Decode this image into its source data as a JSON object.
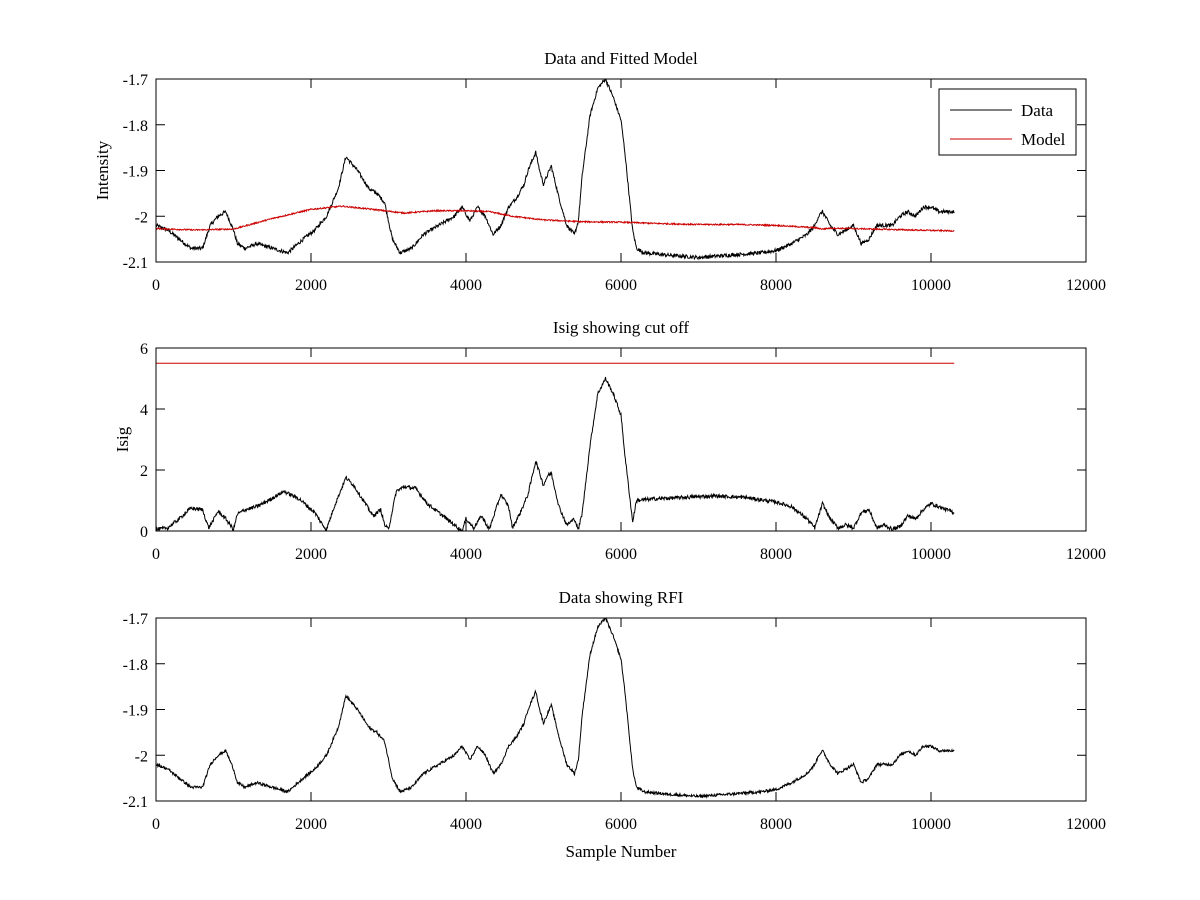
{
  "chart_data": [
    {
      "type": "line",
      "title": "Data and Fitted Model",
      "xlabel": "",
      "ylabel": "Intensity",
      "xlim": [
        0,
        12000
      ],
      "ylim": [
        -2.1,
        -1.7
      ],
      "xticks": [
        0,
        2000,
        4000,
        6000,
        8000,
        10000,
        12000
      ],
      "yticks": [
        -2.1,
        -2,
        -1.9,
        -1.8,
        -1.7
      ],
      "xtick_labels": [
        "0",
        "2000",
        "4000",
        "6000",
        "8000",
        "10000",
        "12000"
      ],
      "ytick_labels": [
        "-2.1",
        "-2",
        "-1.9",
        "-1.8",
        "-1.7"
      ],
      "grid": false,
      "legend": {
        "position": "top-right",
        "entries": [
          "Data",
          "Model"
        ]
      },
      "series": [
        {
          "name": "Data",
          "color": "#000000",
          "noise": 0.004,
          "x": [
            0,
            150,
            300,
            450,
            600,
            700,
            800,
            900,
            1000,
            1050,
            1150,
            1300,
            1500,
            1700,
            1900,
            2050,
            2200,
            2350,
            2450,
            2600,
            2750,
            2850,
            2950,
            3050,
            3150,
            3300,
            3450,
            3650,
            3850,
            3950,
            4050,
            4150,
            4250,
            4350,
            4450,
            4550,
            4650,
            4750,
            4800,
            4900,
            4950,
            5000,
            5050,
            5100,
            5200,
            5300,
            5400,
            5450,
            5500,
            5600,
            5700,
            5800,
            5900,
            6000,
            6050,
            6150,
            6200,
            6300,
            6600,
            7000,
            7400,
            7800,
            8000,
            8200,
            8400,
            8500,
            8550,
            8600,
            8700,
            8800,
            8900,
            9000,
            9100,
            9200,
            9300,
            9400,
            9500,
            9600,
            9700,
            9800,
            9900,
            10000,
            10100,
            10200,
            10300
          ],
          "y": [
            -2.02,
            -2.03,
            -2.05,
            -2.07,
            -2.07,
            -2.02,
            -2.0,
            -1.99,
            -2.03,
            -2.06,
            -2.07,
            -2.06,
            -2.07,
            -2.08,
            -2.05,
            -2.03,
            -2.0,
            -1.94,
            -1.87,
            -1.9,
            -1.94,
            -1.95,
            -1.97,
            -2.05,
            -2.08,
            -2.07,
            -2.04,
            -2.02,
            -2.0,
            -1.98,
            -2.01,
            -1.98,
            -2.0,
            -2.04,
            -2.02,
            -1.98,
            -1.96,
            -1.93,
            -1.9,
            -1.86,
            -1.9,
            -1.93,
            -1.91,
            -1.89,
            -1.96,
            -2.02,
            -2.04,
            -2.01,
            -1.91,
            -1.78,
            -1.72,
            -1.7,
            -1.74,
            -1.79,
            -1.86,
            -2.03,
            -2.07,
            -2.08,
            -2.085,
            -2.09,
            -2.085,
            -2.08,
            -2.075,
            -2.06,
            -2.04,
            -2.02,
            -2.0,
            -1.99,
            -2.02,
            -2.04,
            -2.03,
            -2.02,
            -2.06,
            -2.05,
            -2.02,
            -2.02,
            -2.02,
            -2.0,
            -1.99,
            -2.0,
            -1.98,
            -1.98,
            -1.99,
            -1.99,
            -1.99
          ]
        },
        {
          "name": "Model",
          "color": "#cc0000",
          "noise": 0.0015,
          "x": [
            0,
            500,
            1000,
            1500,
            2000,
            2400,
            2800,
            3200,
            3600,
            4000,
            4300,
            4600,
            5000,
            5500,
            6000,
            6500,
            7000,
            7500,
            8000,
            8500,
            8600,
            8700,
            9000,
            9500,
            10000,
            10300
          ],
          "y": [
            -2.027,
            -2.03,
            -2.028,
            -2.005,
            -1.985,
            -1.978,
            -1.985,
            -1.993,
            -1.988,
            -1.988,
            -1.99,
            -2.0,
            -2.008,
            -2.012,
            -2.013,
            -2.016,
            -2.018,
            -2.018,
            -2.02,
            -2.025,
            -2.028,
            -2.026,
            -2.027,
            -2.029,
            -2.031,
            -2.032
          ]
        }
      ]
    },
    {
      "type": "line",
      "title": "Isig showing cut off",
      "xlabel": "",
      "ylabel": "Isig",
      "xlim": [
        0,
        12000
      ],
      "ylim": [
        0,
        6
      ],
      "xticks": [
        0,
        2000,
        4000,
        6000,
        8000,
        10000,
        12000
      ],
      "yticks": [
        0,
        2,
        4,
        6
      ],
      "xtick_labels": [
        "0",
        "2000",
        "4000",
        "6000",
        "8000",
        "10000",
        "12000"
      ],
      "ytick_labels": [
        "0",
        "2",
        "4",
        "6"
      ],
      "grid": false,
      "series": [
        {
          "color": "#000000",
          "noise": 0.06,
          "x": [
            0,
            150,
            300,
            450,
            600,
            680,
            750,
            800,
            900,
            1000,
            1050,
            1150,
            1300,
            1450,
            1650,
            1850,
            2050,
            2150,
            2200,
            2300,
            2450,
            2550,
            2700,
            2800,
            2900,
            2950,
            3000,
            3100,
            3200,
            3350,
            3500,
            3650,
            3800,
            3950,
            4000,
            4100,
            4200,
            4300,
            4450,
            4550,
            4600,
            4700,
            4800,
            4900,
            4950,
            5000,
            5050,
            5100,
            5200,
            5300,
            5400,
            5450,
            5500,
            5600,
            5700,
            5800,
            5900,
            6000,
            6050,
            6150,
            6200,
            6400,
            6800,
            7200,
            7600,
            8000,
            8200,
            8400,
            8500,
            8550,
            8600,
            8700,
            8800,
            8900,
            9000,
            9100,
            9200,
            9300,
            9400,
            9500,
            9600,
            9700,
            9800,
            9900,
            10000,
            10100,
            10200,
            10300
          ],
          "y": [
            0.05,
            0.1,
            0.4,
            0.75,
            0.7,
            0.1,
            0.4,
            0.65,
            0.4,
            0.05,
            0.55,
            0.7,
            0.8,
            1.0,
            1.3,
            1.05,
            0.6,
            0.2,
            0.05,
            0.8,
            1.75,
            1.5,
            0.9,
            0.5,
            0.7,
            0.2,
            0.05,
            1.3,
            1.45,
            1.4,
            0.9,
            0.6,
            0.3,
            0.0,
            0.4,
            0.1,
            0.5,
            0.05,
            1.2,
            0.8,
            0.1,
            0.6,
            1.2,
            2.3,
            1.9,
            1.5,
            1.8,
            1.9,
            0.8,
            0.2,
            0.4,
            0.05,
            0.6,
            2.8,
            4.5,
            5.0,
            4.5,
            3.8,
            2.5,
            0.3,
            1.0,
            1.05,
            1.1,
            1.15,
            1.1,
            0.95,
            0.8,
            0.4,
            0.1,
            0.5,
            0.9,
            0.4,
            0.1,
            0.2,
            0.1,
            0.6,
            0.7,
            0.1,
            0.2,
            0.05,
            0.15,
            0.5,
            0.4,
            0.7,
            0.9,
            0.8,
            0.7,
            0.6
          ],
          "clip_min": 0
        },
        {
          "color": "#cc0000",
          "noise": 0,
          "x": [
            0,
            10300
          ],
          "y": [
            5.5,
            5.5
          ]
        }
      ]
    },
    {
      "type": "line",
      "title": "Data showing RFI",
      "xlabel": "Sample Number",
      "ylabel": "",
      "xlim": [
        0,
        12000
      ],
      "ylim": [
        -2.1,
        -1.7
      ],
      "xticks": [
        0,
        2000,
        4000,
        6000,
        8000,
        10000,
        12000
      ],
      "yticks": [
        -2.1,
        -2,
        -1.9,
        -1.8,
        -1.7
      ],
      "xtick_labels": [
        "0",
        "2000",
        "4000",
        "6000",
        "8000",
        "10000",
        "12000"
      ],
      "ytick_labels": [
        "-2.1",
        "-2",
        "-1.9",
        "-1.8",
        "-1.7"
      ],
      "grid": false,
      "series": [
        {
          "color": "#000000",
          "noise": 0.003,
          "x": [
            0,
            150,
            300,
            450,
            600,
            700,
            800,
            900,
            1000,
            1050,
            1150,
            1300,
            1500,
            1700,
            1900,
            2050,
            2200,
            2350,
            2450,
            2600,
            2750,
            2850,
            2950,
            3050,
            3150,
            3300,
            3450,
            3650,
            3850,
            3950,
            4050,
            4150,
            4250,
            4350,
            4450,
            4550,
            4650,
            4750,
            4800,
            4900,
            4950,
            5000,
            5050,
            5100,
            5200,
            5300,
            5400,
            5450,
            5500,
            5600,
            5700,
            5800,
            5900,
            6000,
            6050,
            6150,
            6200,
            6300,
            6600,
            7000,
            7400,
            7800,
            8000,
            8200,
            8400,
            8500,
            8550,
            8600,
            8700,
            8800,
            8900,
            9000,
            9100,
            9200,
            9300,
            9400,
            9500,
            9600,
            9700,
            9800,
            9900,
            10000,
            10100,
            10200,
            10300
          ],
          "y": [
            -2.02,
            -2.03,
            -2.05,
            -2.07,
            -2.07,
            -2.02,
            -2.0,
            -1.99,
            -2.03,
            -2.06,
            -2.07,
            -2.06,
            -2.07,
            -2.08,
            -2.05,
            -2.03,
            -2.0,
            -1.94,
            -1.87,
            -1.9,
            -1.94,
            -1.95,
            -1.97,
            -2.05,
            -2.08,
            -2.07,
            -2.04,
            -2.02,
            -2.0,
            -1.98,
            -2.01,
            -1.98,
            -2.0,
            -2.04,
            -2.02,
            -1.98,
            -1.96,
            -1.93,
            -1.9,
            -1.86,
            -1.9,
            -1.93,
            -1.91,
            -1.89,
            -1.96,
            -2.02,
            -2.04,
            -2.01,
            -1.91,
            -1.78,
            -1.72,
            -1.7,
            -1.74,
            -1.79,
            -1.86,
            -2.03,
            -2.07,
            -2.08,
            -2.085,
            -2.09,
            -2.085,
            -2.08,
            -2.075,
            -2.06,
            -2.04,
            -2.02,
            -2.0,
            -1.99,
            -2.02,
            -2.04,
            -2.03,
            -2.02,
            -2.06,
            -2.05,
            -2.02,
            -2.02,
            -2.02,
            -2.0,
            -1.99,
            -2.0,
            -1.98,
            -1.98,
            -1.99,
            -1.99,
            -1.99
          ]
        }
      ]
    }
  ]
}
